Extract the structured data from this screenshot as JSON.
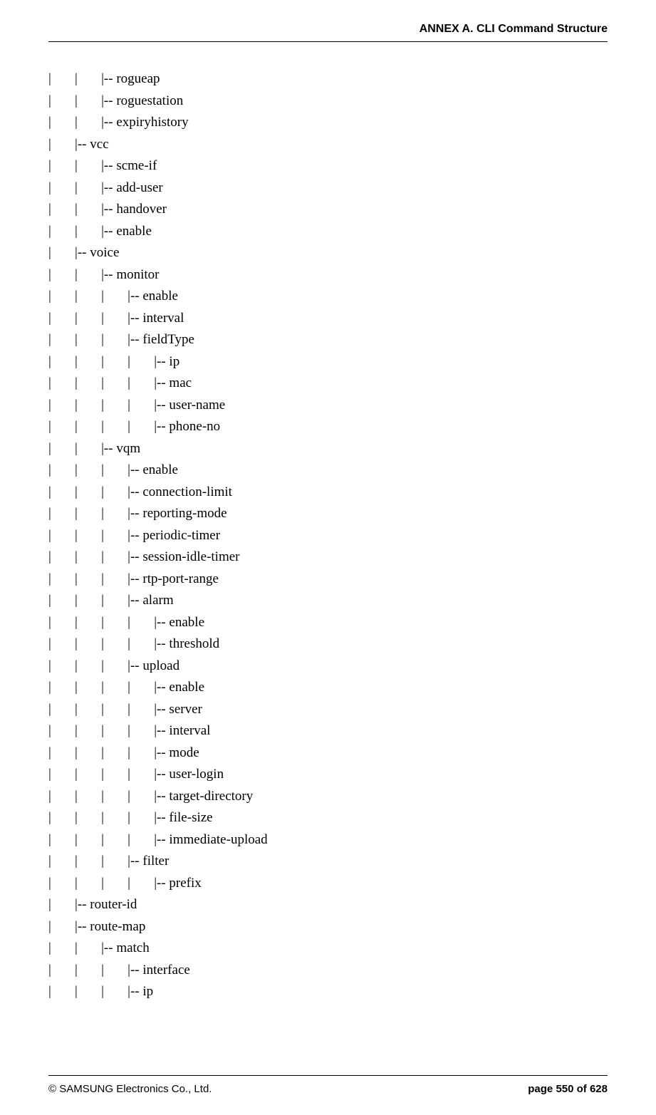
{
  "header": {
    "title": "ANNEX A. CLI Command Structure"
  },
  "tree": {
    "lines": [
      "|       |       |-- rogueap",
      "|       |       |-- roguestation",
      "|       |       |-- expiryhistory",
      "|       |-- vcc",
      "|       |       |-- scme-if",
      "|       |       |-- add-user",
      "|       |       |-- handover",
      "|       |       |-- enable",
      "|       |-- voice",
      "|       |       |-- monitor",
      "|       |       |       |-- enable",
      "|       |       |       |-- interval",
      "|       |       |       |-- fieldType",
      "|       |       |       |       |-- ip",
      "|       |       |       |       |-- mac",
      "|       |       |       |       |-- user-name",
      "|       |       |       |       |-- phone-no",
      "|       |       |-- vqm",
      "|       |       |       |-- enable",
      "|       |       |       |-- connection-limit",
      "|       |       |       |-- reporting-mode",
      "|       |       |       |-- periodic-timer",
      "|       |       |       |-- session-idle-timer",
      "|       |       |       |-- rtp-port-range",
      "|       |       |       |-- alarm",
      "|       |       |       |       |-- enable",
      "|       |       |       |       |-- threshold",
      "|       |       |       |-- upload",
      "|       |       |       |       |-- enable",
      "|       |       |       |       |-- server",
      "|       |       |       |       |-- interval",
      "|       |       |       |       |-- mode",
      "|       |       |       |       |-- user-login",
      "|       |       |       |       |-- target-directory",
      "|       |       |       |       |-- file-size",
      "|       |       |       |       |-- immediate-upload",
      "|       |       |       |-- filter",
      "|       |       |       |       |-- prefix",
      "|       |-- router-id",
      "|       |-- route-map",
      "|       |       |-- match",
      "|       |       |       |-- interface",
      "|       |       |       |-- ip"
    ]
  },
  "footer": {
    "left": "© SAMSUNG Electronics Co., Ltd.",
    "right": "page 550 of 628"
  }
}
